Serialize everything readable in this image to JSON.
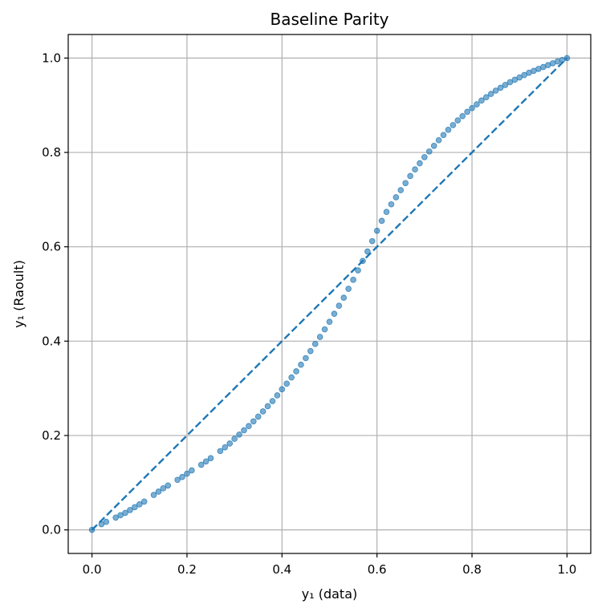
{
  "chart_data": {
    "type": "scatter",
    "title": "Baseline Parity",
    "xlabel": "y₁ (data)",
    "ylabel": "y₁ (Raoult)",
    "xlim": [
      -0.05,
      1.05
    ],
    "ylim": [
      -0.05,
      1.05
    ],
    "xticks": [
      0.0,
      0.2,
      0.4,
      0.6,
      0.8,
      1.0
    ],
    "yticks": [
      0.0,
      0.2,
      0.4,
      0.6,
      0.8,
      1.0
    ],
    "xtick_labels": [
      "0.0",
      "0.2",
      "0.4",
      "0.6",
      "0.8",
      "1.0"
    ],
    "ytick_labels": [
      "0.0",
      "0.2",
      "0.4",
      "0.6",
      "0.8",
      "1.0"
    ],
    "grid": true,
    "colors": {
      "points": "#1f77b4",
      "reference_line": "#1f77b4",
      "grid": "#b0b0b0"
    },
    "series": [
      {
        "kind": "scatter",
        "x": [
          0.0,
          0.02,
          0.03,
          0.05,
          0.06,
          0.07,
          0.08,
          0.09,
          0.1,
          0.11,
          0.13,
          0.14,
          0.15,
          0.16,
          0.18,
          0.19,
          0.2,
          0.21,
          0.23,
          0.24,
          0.25,
          0.27,
          0.28,
          0.29,
          0.3,
          0.31,
          0.32,
          0.33,
          0.34,
          0.35,
          0.36,
          0.37,
          0.38,
          0.39,
          0.4,
          0.41,
          0.42,
          0.43,
          0.44,
          0.45,
          0.46,
          0.47,
          0.48,
          0.49,
          0.5,
          0.51,
          0.52,
          0.53,
          0.54,
          0.55,
          0.56,
          0.57,
          0.58,
          0.59,
          0.6,
          0.61,
          0.62,
          0.63,
          0.64,
          0.65,
          0.66,
          0.67,
          0.68,
          0.69,
          0.7,
          0.71,
          0.72,
          0.73,
          0.74,
          0.75,
          0.76,
          0.77,
          0.78,
          0.79,
          0.8,
          0.81,
          0.82,
          0.83,
          0.84,
          0.85,
          0.86,
          0.87,
          0.88,
          0.89,
          0.9,
          0.91,
          0.92,
          0.93,
          0.94,
          0.95,
          0.96,
          0.97,
          0.98,
          0.99,
          1.0
        ],
        "y": [
          0.0,
          0.012,
          0.017,
          0.026,
          0.031,
          0.036,
          0.042,
          0.048,
          0.054,
          0.06,
          0.074,
          0.081,
          0.088,
          0.094,
          0.106,
          0.112,
          0.119,
          0.126,
          0.138,
          0.145,
          0.152,
          0.167,
          0.175,
          0.183,
          0.193,
          0.202,
          0.211,
          0.22,
          0.23,
          0.24,
          0.251,
          0.262,
          0.273,
          0.285,
          0.298,
          0.31,
          0.323,
          0.336,
          0.35,
          0.364,
          0.379,
          0.394,
          0.409,
          0.425,
          0.441,
          0.458,
          0.475,
          0.492,
          0.511,
          0.53,
          0.55,
          0.57,
          0.59,
          0.612,
          0.634,
          0.655,
          0.674,
          0.69,
          0.705,
          0.72,
          0.735,
          0.75,
          0.764,
          0.777,
          0.79,
          0.802,
          0.814,
          0.826,
          0.837,
          0.848,
          0.858,
          0.868,
          0.877,
          0.886,
          0.894,
          0.902,
          0.91,
          0.917,
          0.924,
          0.931,
          0.937,
          0.943,
          0.949,
          0.954,
          0.959,
          0.964,
          0.969,
          0.973,
          0.977,
          0.981,
          0.985,
          0.989,
          0.993,
          0.996,
          1.0
        ]
      },
      {
        "kind": "line",
        "style": "dashed",
        "x": [
          0.0,
          1.0
        ],
        "y": [
          0.0,
          1.0
        ]
      }
    ]
  }
}
